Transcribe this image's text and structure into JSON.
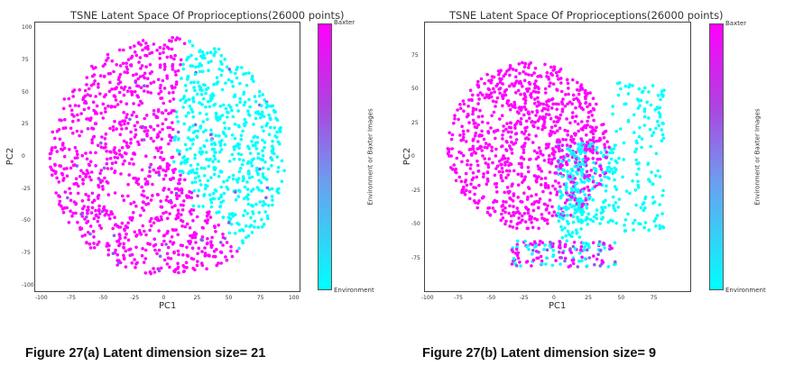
{
  "figures": [
    {
      "caption": "Figure  27(a)  Latent dimension size= 21",
      "chart_data": {
        "type": "scatter",
        "title": "TSNE Latent Space Of Proprioceptions(26000 points)",
        "xlabel": "PC1",
        "ylabel": "PC2",
        "xlim": [
          -105,
          105
        ],
        "ylim": [
          -105,
          105
        ],
        "xticks": [
          -100,
          -75,
          -50,
          -25,
          0,
          25,
          50,
          75,
          100
        ],
        "yticks": [
          100,
          75,
          50,
          25,
          0,
          -25,
          -50,
          -75,
          -100
        ],
        "colorbar": {
          "top_label": "Baxter",
          "bottom_label": "Environment",
          "axis_label": "Environment or Baxter Images"
        },
        "colors": {
          "baxter": "#ff00ff",
          "environment": "#00ffff",
          "mixed": "#8a5cf0"
        },
        "series": [
          {
            "name": "Baxter",
            "color": "#ff00ff",
            "region": "left and lower part of the disc",
            "approx_center": [
              -35,
              -5
            ],
            "extent": [
              95,
              95
            ]
          },
          {
            "name": "Environment",
            "color": "#00ffff",
            "region": "upper-right sector of the disc",
            "approx_center": [
              45,
              25
            ],
            "extent": [
              55,
              60
            ]
          }
        ],
        "grid": false
      }
    },
    {
      "caption": "Figure 27(b) Latent dimension size= 9",
      "chart_data": {
        "type": "scatter",
        "title": "TSNE Latent Space Of Proprioceptions(26000 points)",
        "xlabel": "PC1",
        "ylabel": "PC2",
        "xlim": [
          -102,
          102
        ],
        "ylim": [
          -100,
          100
        ],
        "xticks": [
          -100,
          -75,
          -50,
          -25,
          0,
          25,
          50,
          75
        ],
        "yticks": [
          75,
          50,
          25,
          0,
          -25,
          -50,
          -75
        ],
        "colorbar": {
          "top_label": "Baxter",
          "bottom_label": "Environment",
          "axis_label": "Environment or Baxter Images"
        },
        "colors": {
          "baxter": "#ff00ff",
          "environment": "#00ffff",
          "mixed": "#8a5cf0"
        },
        "series": [
          {
            "name": "Baxter",
            "color": "#ff00ff",
            "region": "large cluster on the left and centre",
            "approx_center": [
              -20,
              10
            ],
            "extent": [
              70,
              65
            ]
          },
          {
            "name": "Environment",
            "color": "#00ffff",
            "region": "elongated clusters on the right and lower centre",
            "approx_center": [
              50,
              0
            ],
            "extent": [
              30,
              60
            ]
          }
        ],
        "grid": false
      }
    }
  ]
}
